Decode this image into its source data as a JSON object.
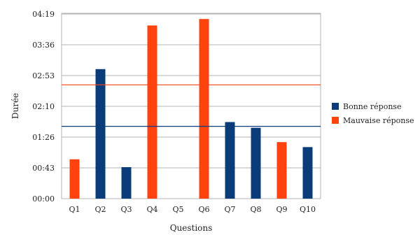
{
  "chart_data": {
    "type": "bar",
    "title": "",
    "xlabel": "Questions",
    "ylabel": "Durée",
    "categories": [
      "Q1",
      "Q2",
      "Q3",
      "Q4",
      "Q5",
      "Q6",
      "Q7",
      "Q8",
      "Q9",
      "Q10"
    ],
    "y_ticks_seconds": [
      0,
      43,
      86,
      129,
      172,
      215,
      258
    ],
    "y_tick_labels": [
      "00:00",
      "00:43",
      "01:26",
      "02:10",
      "02:53",
      "03:36",
      "04:19"
    ],
    "ylim": [
      0,
      259
    ],
    "series": [
      {
        "name": "Bonne réponse",
        "color": "#0b3c7a",
        "values_seconds": [
          null,
          181,
          44,
          null,
          null,
          null,
          107,
          99,
          null,
          72
        ]
      },
      {
        "name": "Mauvaise réponse",
        "color": "#ff420e",
        "values_seconds": [
          55,
          null,
          null,
          242,
          null,
          251,
          null,
          null,
          79,
          null
        ]
      }
    ],
    "reference_lines": [
      {
        "series": "Mauvaise réponse",
        "color": "#ff420e",
        "value_seconds": 159
      },
      {
        "series": "Bonne réponse",
        "color": "#0b3c7a",
        "value_seconds": 101
      }
    ],
    "grid": true,
    "legend_position": "right"
  }
}
